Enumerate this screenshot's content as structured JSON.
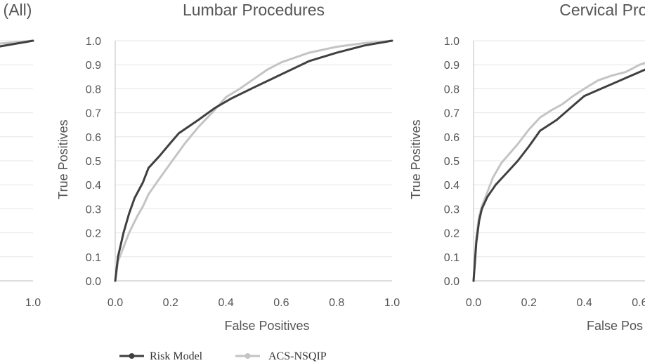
{
  "chart_data": [
    {
      "type": "line",
      "title": "(All)",
      "xlabel": "",
      "ylabel": "",
      "xlim": [
        0,
        1
      ],
      "ylim": [
        0,
        1
      ],
      "x_ticks": [
        "1.0"
      ],
      "y_ticks": [],
      "series": [
        {
          "name": "Risk Model",
          "color": "#404040",
          "points": [
            [
              0.85,
              0.97
            ],
            [
              1.0,
              1.0
            ]
          ]
        },
        {
          "name": "ACS-NSQIP",
          "color": "#c4c4c4",
          "points": [
            [
              0.85,
              0.985
            ],
            [
              1.0,
              1.0
            ]
          ]
        }
      ]
    },
    {
      "type": "line",
      "title": "Lumbar Procedures",
      "xlabel": "False Positives",
      "ylabel": "True Positives",
      "xlim": [
        0,
        1
      ],
      "ylim": [
        0,
        1
      ],
      "grid": true,
      "x_ticks": [
        "0.0",
        "0.2",
        "0.4",
        "0.6",
        "0.8",
        "1.0"
      ],
      "y_ticks": [
        "0.0",
        "0.1",
        "0.2",
        "0.3",
        "0.4",
        "0.5",
        "0.6",
        "0.7",
        "0.8",
        "0.9",
        "1.0"
      ],
      "series": [
        {
          "name": "Risk Model",
          "color": "#404040",
          "points": [
            [
              0,
              0
            ],
            [
              0.01,
              0.1
            ],
            [
              0.03,
              0.2
            ],
            [
              0.05,
              0.28
            ],
            [
              0.07,
              0.345
            ],
            [
              0.1,
              0.41
            ],
            [
              0.12,
              0.47
            ],
            [
              0.16,
              0.52
            ],
            [
              0.2,
              0.575
            ],
            [
              0.23,
              0.615
            ],
            [
              0.3,
              0.67
            ],
            [
              0.36,
              0.72
            ],
            [
              0.42,
              0.76
            ],
            [
              0.5,
              0.805
            ],
            [
              0.6,
              0.86
            ],
            [
              0.7,
              0.915
            ],
            [
              0.8,
              0.95
            ],
            [
              0.9,
              0.98
            ],
            [
              1.0,
              1.0
            ]
          ]
        },
        {
          "name": "ACS-NSQIP",
          "color": "#c4c4c4",
          "points": [
            [
              0,
              0
            ],
            [
              0.01,
              0.08
            ],
            [
              0.03,
              0.14
            ],
            [
              0.05,
              0.2
            ],
            [
              0.08,
              0.27
            ],
            [
              0.1,
              0.31
            ],
            [
              0.12,
              0.36
            ],
            [
              0.15,
              0.41
            ],
            [
              0.2,
              0.49
            ],
            [
              0.25,
              0.57
            ],
            [
              0.3,
              0.64
            ],
            [
              0.35,
              0.7
            ],
            [
              0.4,
              0.765
            ],
            [
              0.45,
              0.8
            ],
            [
              0.5,
              0.84
            ],
            [
              0.55,
              0.88
            ],
            [
              0.6,
              0.91
            ],
            [
              0.7,
              0.95
            ],
            [
              0.8,
              0.975
            ],
            [
              0.9,
              0.99
            ],
            [
              1.0,
              1.0
            ]
          ]
        }
      ]
    },
    {
      "type": "line",
      "title": "Cervical Proce",
      "xlabel": "False Pos",
      "ylabel": "True Positives",
      "xlim": [
        0,
        1
      ],
      "ylim": [
        0,
        1
      ],
      "grid": true,
      "x_ticks": [
        "0.0",
        "0.2",
        "0.4",
        "0.6"
      ],
      "y_ticks": [
        "0.0",
        "0.1",
        "0.2",
        "0.3",
        "0.4",
        "0.5",
        "0.6",
        "0.7",
        "0.8",
        "0.9",
        "1.0"
      ],
      "series": [
        {
          "name": "Risk Model",
          "color": "#404040",
          "points": [
            [
              0,
              0
            ],
            [
              0.005,
              0.08
            ],
            [
              0.01,
              0.16
            ],
            [
              0.02,
              0.25
            ],
            [
              0.03,
              0.3
            ],
            [
              0.05,
              0.35
            ],
            [
              0.08,
              0.4
            ],
            [
              0.12,
              0.45
            ],
            [
              0.16,
              0.5
            ],
            [
              0.2,
              0.56
            ],
            [
              0.24,
              0.625
            ],
            [
              0.3,
              0.67
            ],
            [
              0.35,
              0.72
            ],
            [
              0.4,
              0.77
            ],
            [
              0.5,
              0.82
            ],
            [
              0.6,
              0.87
            ],
            [
              0.64,
              0.89
            ]
          ]
        },
        {
          "name": "ACS-NSQIP",
          "color": "#c4c4c4",
          "points": [
            [
              0,
              0
            ],
            [
              0.005,
              0.1
            ],
            [
              0.01,
              0.18
            ],
            [
              0.02,
              0.27
            ],
            [
              0.03,
              0.31
            ],
            [
              0.05,
              0.37
            ],
            [
              0.07,
              0.43
            ],
            [
              0.1,
              0.49
            ],
            [
              0.13,
              0.53
            ],
            [
              0.16,
              0.57
            ],
            [
              0.2,
              0.63
            ],
            [
              0.24,
              0.68
            ],
            [
              0.28,
              0.71
            ],
            [
              0.32,
              0.735
            ],
            [
              0.36,
              0.77
            ],
            [
              0.4,
              0.8
            ],
            [
              0.45,
              0.835
            ],
            [
              0.5,
              0.855
            ],
            [
              0.55,
              0.87
            ],
            [
              0.6,
              0.9
            ],
            [
              0.64,
              0.915
            ]
          ]
        }
      ]
    }
  ],
  "legend": {
    "items": [
      {
        "label": "Risk Model",
        "color": "#404040"
      },
      {
        "label": "ACS-NSQIP",
        "color": "#c4c4c4"
      }
    ]
  }
}
